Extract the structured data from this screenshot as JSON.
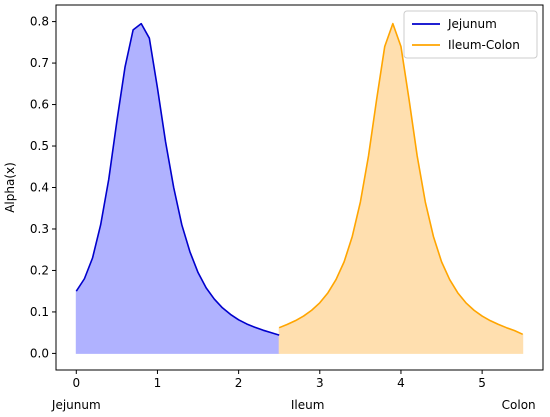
{
  "chart_data": {
    "type": "area",
    "ylabel": "Alpha(x)",
    "xlabel": "",
    "xlim": [
      -0.25,
      5.75
    ],
    "ylim": [
      -0.04,
      0.84
    ],
    "x_ticks": [
      0,
      1,
      2,
      3,
      4,
      5
    ],
    "y_ticks": [
      0.0,
      0.1,
      0.2,
      0.3,
      0.4,
      0.5,
      0.6,
      0.7,
      0.8
    ],
    "y_tick_labels": [
      "0.0",
      "0.1",
      "0.2",
      "0.3",
      "0.4",
      "0.5",
      "0.6",
      "0.7",
      "0.8"
    ],
    "region_labels": [
      {
        "text": "Jejunum",
        "x": 0.0
      },
      {
        "text": "Ileum",
        "x": 2.85
      },
      {
        "text": "Colon",
        "x": 5.45
      }
    ],
    "legend": {
      "placement": "upper right",
      "entries": [
        "Jejunum",
        "Ileum-Colon"
      ]
    },
    "grid": false,
    "series": [
      {
        "name": "Jejunum",
        "color": "#0000cc",
        "fill": "#b0b2ff",
        "x": [
          0.0,
          0.1,
          0.2,
          0.3,
          0.4,
          0.5,
          0.6,
          0.7,
          0.8,
          0.9,
          1.0,
          1.1,
          1.2,
          1.3,
          1.4,
          1.5,
          1.6,
          1.7,
          1.8,
          1.9,
          2.0,
          2.1,
          2.2,
          2.3,
          2.4,
          2.5
        ],
        "values": [
          0.15,
          0.18,
          0.23,
          0.31,
          0.42,
          0.56,
          0.69,
          0.78,
          0.795,
          0.76,
          0.64,
          0.51,
          0.4,
          0.31,
          0.245,
          0.195,
          0.158,
          0.131,
          0.11,
          0.094,
          0.081,
          0.071,
          0.063,
          0.056,
          0.05,
          0.044
        ]
      },
      {
        "name": "Ileum-Colon",
        "color": "#ffa500",
        "fill": "#ffdfaf",
        "x": [
          2.5,
          2.6,
          2.7,
          2.8,
          2.9,
          3.0,
          3.1,
          3.2,
          3.3,
          3.4,
          3.5,
          3.6,
          3.7,
          3.8,
          3.9,
          4.0,
          4.1,
          4.2,
          4.3,
          4.4,
          4.5,
          4.6,
          4.7,
          4.8,
          4.9,
          5.0,
          5.1,
          5.2,
          5.3,
          5.4,
          5.5
        ],
        "values": [
          0.062,
          0.07,
          0.079,
          0.09,
          0.104,
          0.122,
          0.146,
          0.178,
          0.221,
          0.282,
          0.365,
          0.476,
          0.612,
          0.74,
          0.795,
          0.74,
          0.612,
          0.476,
          0.365,
          0.282,
          0.221,
          0.178,
          0.146,
          0.122,
          0.104,
          0.09,
          0.079,
          0.07,
          0.062,
          0.055,
          0.046
        ]
      }
    ]
  }
}
